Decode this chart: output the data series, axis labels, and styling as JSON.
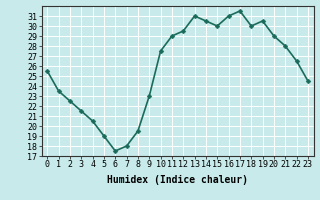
{
  "x": [
    0,
    1,
    2,
    3,
    4,
    5,
    6,
    7,
    8,
    9,
    10,
    11,
    12,
    13,
    14,
    15,
    16,
    17,
    18,
    19,
    20,
    21,
    22,
    23
  ],
  "y": [
    25.5,
    23.5,
    22.5,
    21.5,
    20.5,
    19.0,
    17.5,
    18.0,
    19.5,
    23.0,
    27.5,
    29.0,
    29.5,
    31.0,
    30.5,
    30.0,
    31.0,
    31.5,
    30.0,
    30.5,
    29.0,
    28.0,
    26.5,
    24.5
  ],
  "xlabel": "Humidex (Indice chaleur)",
  "ylim": [
    17,
    32
  ],
  "xlim": [
    -0.5,
    23.5
  ],
  "yticks": [
    17,
    18,
    19,
    20,
    21,
    22,
    23,
    24,
    25,
    26,
    27,
    28,
    29,
    30,
    31
  ],
  "xticks": [
    0,
    1,
    2,
    3,
    4,
    5,
    6,
    7,
    8,
    9,
    10,
    11,
    12,
    13,
    14,
    15,
    16,
    17,
    18,
    19,
    20,
    21,
    22,
    23
  ],
  "line_color": "#1a6b5a",
  "marker_color": "#1a6b5a",
  "bg_color": "#c8eaea",
  "grid_color": "#ffffff",
  "xlabel_fontsize": 7,
  "tick_fontsize": 6,
  "marker_size": 2.5,
  "linewidth": 1.2
}
